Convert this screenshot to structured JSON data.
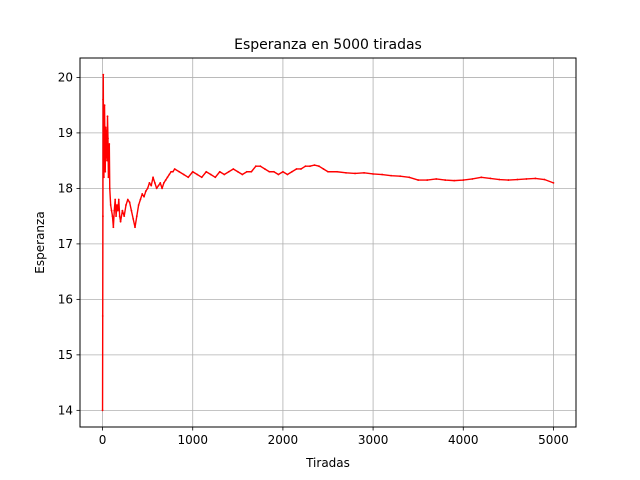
{
  "chart_data": {
    "type": "line",
    "title": "Esperanza en 5000 tiradas",
    "xlabel": "Tiradas",
    "ylabel": "Esperanza",
    "xlim": [
      -250,
      5250
    ],
    "ylim": [
      13.7,
      20.35
    ],
    "xticks": [
      0,
      1000,
      2000,
      3000,
      4000,
      5000
    ],
    "yticks": [
      14,
      15,
      16,
      17,
      18,
      19,
      20
    ],
    "grid": true,
    "series": [
      {
        "color": "#ff0000",
        "x": [
          0,
          2,
          4,
          6,
          8,
          10,
          12,
          15,
          18,
          22,
          26,
          30,
          35,
          40,
          45,
          50,
          55,
          60,
          65,
          70,
          75,
          80,
          90,
          100,
          110,
          120,
          130,
          140,
          150,
          160,
          170,
          180,
          190,
          200,
          220,
          240,
          260,
          280,
          300,
          320,
          340,
          360,
          380,
          400,
          420,
          440,
          460,
          480,
          500,
          520,
          540,
          560,
          580,
          600,
          620,
          640,
          660,
          680,
          700,
          720,
          740,
          760,
          780,
          800,
          850,
          900,
          950,
          1000,
          1050,
          1100,
          1150,
          1200,
          1250,
          1300,
          1350,
          1400,
          1450,
          1500,
          1550,
          1600,
          1650,
          1700,
          1750,
          1800,
          1850,
          1900,
          1950,
          2000,
          2050,
          2100,
          2150,
          2200,
          2250,
          2300,
          2350,
          2400,
          2450,
          2500,
          2600,
          2700,
          2800,
          2900,
          3000,
          3100,
          3200,
          3300,
          3400,
          3500,
          3600,
          3700,
          3800,
          3900,
          4000,
          4100,
          4200,
          4300,
          4400,
          4500,
          4600,
          4700,
          4800,
          4900,
          5000
        ],
        "values": [
          14.0,
          15.7,
          17.5,
          19.6,
          20.05,
          19.2,
          18.4,
          18.2,
          18.7,
          19.5,
          18.9,
          18.3,
          19.1,
          19.0,
          18.6,
          18.5,
          19.3,
          18.9,
          18.2,
          18.5,
          18.8,
          18.0,
          17.7,
          17.6,
          17.5,
          17.3,
          17.6,
          17.8,
          17.5,
          17.7,
          17.6,
          17.8,
          17.5,
          17.4,
          17.6,
          17.5,
          17.7,
          17.8,
          17.75,
          17.6,
          17.45,
          17.3,
          17.5,
          17.7,
          17.8,
          17.9,
          17.85,
          17.95,
          18.0,
          18.1,
          18.05,
          18.2,
          18.1,
          18.0,
          18.05,
          18.1,
          18.0,
          18.1,
          18.15,
          18.2,
          18.25,
          18.3,
          18.3,
          18.35,
          18.3,
          18.25,
          18.2,
          18.3,
          18.25,
          18.2,
          18.3,
          18.25,
          18.2,
          18.3,
          18.25,
          18.3,
          18.35,
          18.3,
          18.25,
          18.3,
          18.3,
          18.4,
          18.4,
          18.35,
          18.3,
          18.3,
          18.25,
          18.3,
          18.25,
          18.3,
          18.35,
          18.35,
          18.4,
          18.4,
          18.42,
          18.4,
          18.35,
          18.3,
          18.3,
          18.28,
          18.27,
          18.28,
          18.26,
          18.25,
          18.23,
          18.22,
          18.2,
          18.15,
          18.15,
          18.17,
          18.15,
          18.14,
          18.15,
          18.17,
          18.2,
          18.18,
          18.16,
          18.15,
          18.16,
          18.17,
          18.18,
          18.16,
          18.1
        ]
      }
    ]
  }
}
